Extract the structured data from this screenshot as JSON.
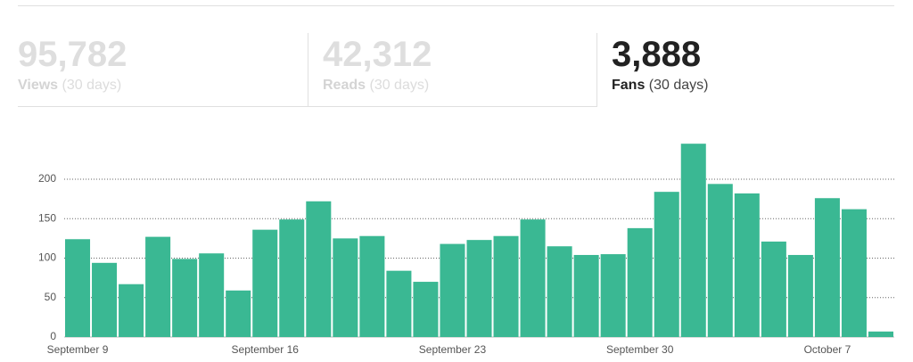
{
  "tabs": [
    {
      "value": "95,782",
      "label": "Views",
      "period": "(30 days)"
    },
    {
      "value": "42,312",
      "label": "Reads",
      "period": "(30 days)"
    },
    {
      "value": "3,888",
      "label": "Fans",
      "period": "(30 days)"
    }
  ],
  "selected_tab": 2,
  "chart_data": {
    "type": "bar",
    "categories": [
      "September 9",
      null,
      null,
      null,
      null,
      null,
      null,
      "September 16",
      null,
      null,
      null,
      null,
      null,
      null,
      "September 23",
      null,
      null,
      null,
      null,
      null,
      null,
      "September 30",
      null,
      null,
      null,
      null,
      null,
      null,
      "October 7",
      null,
      null
    ],
    "values": [
      124,
      94,
      67,
      127,
      99,
      106,
      59,
      136,
      149,
      172,
      125,
      128,
      84,
      70,
      118,
      123,
      128,
      149,
      115,
      104,
      105,
      138,
      184,
      245,
      194,
      182,
      121,
      104,
      176,
      162,
      7
    ],
    "color": "#3ab893",
    "ylim": [
      0,
      250
    ],
    "yticks": [
      0,
      50,
      100,
      150,
      200
    ],
    "grid": true
  }
}
